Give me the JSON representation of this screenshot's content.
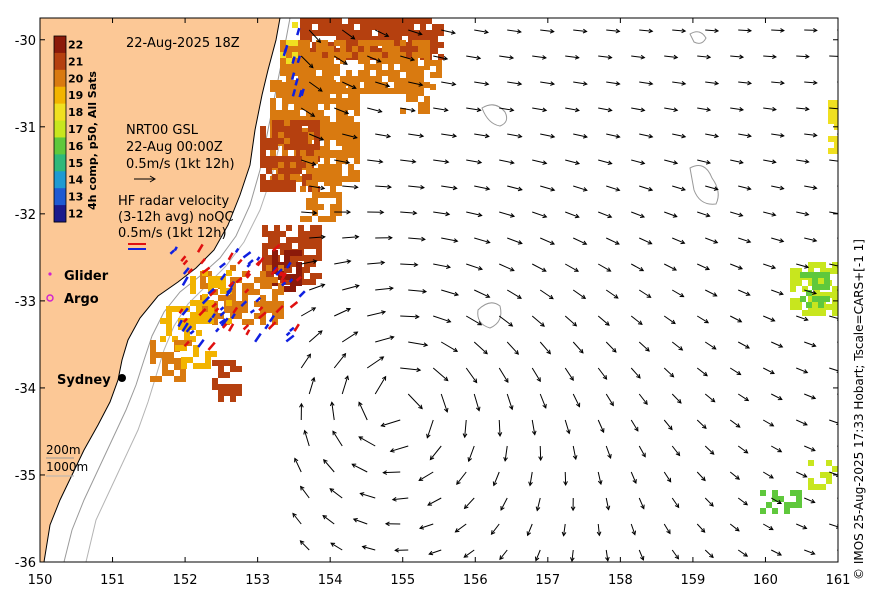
{
  "map": {
    "date_label": "22-Aug-2025 18Z",
    "lon_range": [
      150,
      161
    ],
    "lat_range": [
      -36,
      -29.75
    ],
    "lon_ticks": [
      "150",
      "151",
      "152",
      "153",
      "154",
      "155",
      "156",
      "157",
      "158",
      "159",
      "160",
      "161"
    ],
    "lat_ticks": [
      "-30",
      "-31",
      "-32",
      "-33",
      "-34",
      "-35",
      "-36"
    ],
    "colorbar": {
      "label": "4h comp, p50, All Sats",
      "ticks": [
        "22",
        "21",
        "20",
        "19",
        "18",
        "17",
        "16",
        "15",
        "14",
        "13",
        "12"
      ],
      "colors": [
        "#8b1a0a",
        "#b5400f",
        "#d97a10",
        "#f2b400",
        "#f0e020",
        "#c8e61e",
        "#5fc83c",
        "#2fb87a",
        "#1e9ad2",
        "#1e5ad2",
        "#1a1a8c"
      ]
    },
    "legend_gsl": {
      "line1": "NRT00 GSL",
      "line2": "22-Aug 00:00Z",
      "line3": "0.5m/s (1kt 12h)"
    },
    "legend_hf": {
      "line1": "HF radar velocity",
      "line2": "(3-12h avg) noQC",
      "line3": "0.5m/s (1kt 12h)"
    },
    "glider_label": "Glider",
    "argo_label": "Argo",
    "city_label": "Sydney",
    "depth_200": "200m",
    "depth_1000": "1000m",
    "credit": "© IMOS 25-Aug-2025 17:33 Hobart; Tscale=CARS+[-1 1]",
    "colors": {
      "land": "#fcc896",
      "ocean": "#ffffff",
      "arrow": "#000000",
      "glider": "#d020d0",
      "argo": "#d020d0"
    }
  }
}
